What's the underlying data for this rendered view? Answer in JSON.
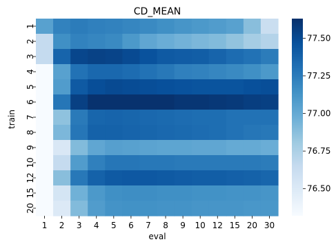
{
  "chart_data": {
    "type": "heatmap",
    "title": "CD_MEAN",
    "xlabel": "eval",
    "ylabel": "train",
    "x_categories": [
      "1",
      "2",
      "3",
      "4",
      "5",
      "6",
      "7",
      "8",
      "9",
      "10",
      "12",
      "15",
      "20",
      "30"
    ],
    "y_categories": [
      "1",
      "2",
      "3",
      "4",
      "5",
      "6",
      "7",
      "8",
      "9",
      "10",
      "12",
      "15",
      "20"
    ],
    "colorbar": {
      "min": 76.32,
      "max": 77.63,
      "ticks": [
        76.5,
        76.75,
        77.0,
        77.25,
        77.5
      ],
      "tick_labels": [
        "76.50",
        "76.75",
        "77.00",
        "77.25",
        "77.50"
      ],
      "colormap": "Blues"
    },
    "values": [
      [
        77.05,
        77.22,
        77.25,
        77.23,
        77.22,
        77.2,
        77.18,
        77.15,
        77.12,
        77.1,
        77.08,
        77.05,
        76.88,
        76.62
      ],
      [
        76.65,
        77.15,
        77.22,
        77.2,
        77.18,
        77.1,
        77.02,
        76.98,
        76.95,
        76.92,
        76.9,
        76.85,
        76.78,
        76.72
      ],
      [
        76.65,
        77.37,
        77.52,
        77.54,
        77.53,
        77.5,
        77.46,
        77.42,
        77.41,
        77.4,
        77.37,
        77.33,
        77.3,
        77.25
      ],
      [
        76.32,
        77.05,
        77.3,
        77.35,
        77.35,
        77.33,
        77.3,
        77.27,
        77.23,
        77.22,
        77.2,
        77.18,
        77.15,
        77.1
      ],
      [
        76.32,
        77.08,
        77.42,
        77.48,
        77.5,
        77.49,
        77.48,
        77.47,
        77.46,
        77.45,
        77.45,
        77.45,
        77.47,
        77.48
      ],
      [
        76.32,
        77.28,
        77.55,
        77.62,
        77.62,
        77.62,
        77.62,
        77.62,
        77.6,
        77.6,
        77.59,
        77.58,
        77.56,
        77.55
      ],
      [
        76.32,
        76.86,
        77.26,
        77.36,
        77.37,
        77.36,
        77.35,
        77.34,
        77.33,
        77.32,
        77.32,
        77.3,
        77.3,
        77.3
      ],
      [
        76.32,
        76.92,
        77.28,
        77.38,
        77.38,
        77.37,
        77.36,
        77.35,
        77.34,
        77.33,
        77.32,
        77.3,
        77.28,
        77.27
      ],
      [
        76.32,
        76.52,
        76.9,
        77.02,
        77.06,
        77.05,
        77.04,
        77.03,
        77.03,
        77.02,
        77.02,
        77.0,
        77.0,
        76.98
      ],
      [
        76.32,
        76.65,
        77.08,
        77.23,
        77.28,
        77.28,
        77.27,
        77.27,
        77.26,
        77.26,
        77.26,
        77.26,
        77.26,
        77.25
      ],
      [
        76.32,
        76.88,
        77.27,
        77.38,
        77.42,
        77.43,
        77.43,
        77.42,
        77.41,
        77.4,
        77.4,
        77.39,
        77.38,
        77.36
      ],
      [
        76.32,
        76.55,
        76.96,
        77.1,
        77.15,
        77.16,
        77.16,
        77.15,
        77.15,
        77.14,
        77.14,
        77.13,
        77.13,
        77.12
      ],
      [
        76.32,
        76.5,
        76.9,
        77.08,
        77.13,
        77.14,
        77.14,
        77.13,
        77.13,
        77.12,
        77.12,
        77.12,
        77.11,
        77.11
      ]
    ]
  }
}
